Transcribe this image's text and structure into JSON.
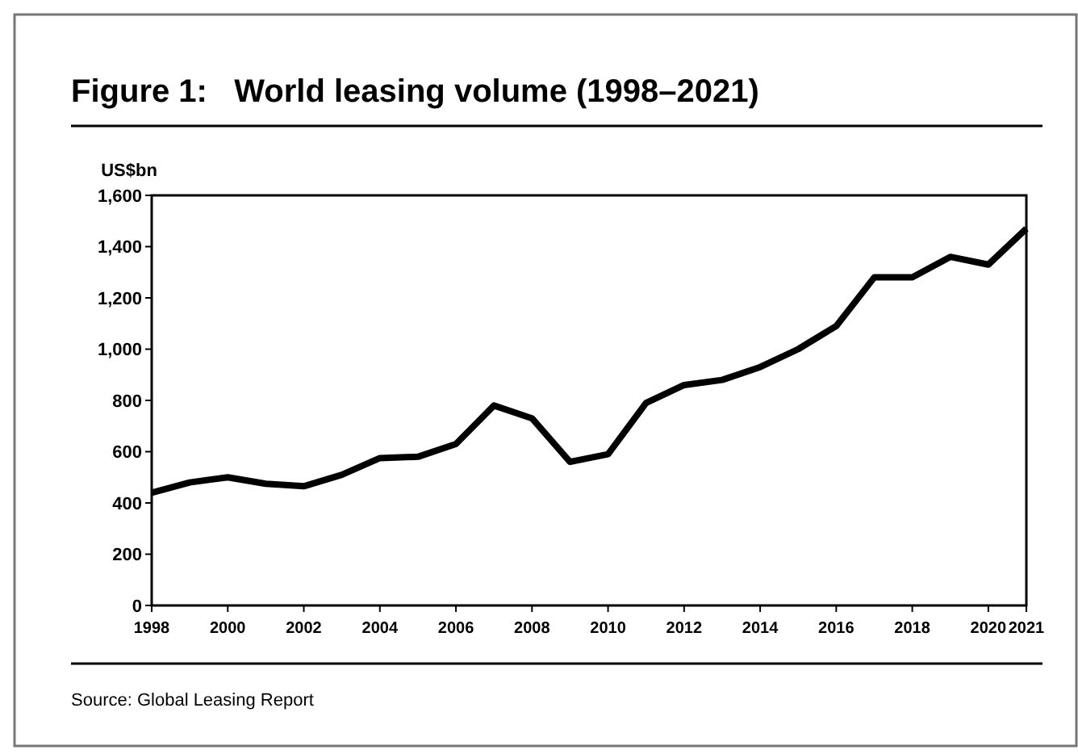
{
  "chart_data": {
    "type": "line",
    "title": "Figure 1:   World leasing volume (1998–2021)",
    "ylabel": "US$bn",
    "x": [
      1998,
      1999,
      2000,
      2001,
      2002,
      2003,
      2004,
      2005,
      2006,
      2007,
      2008,
      2009,
      2010,
      2011,
      2012,
      2013,
      2014,
      2015,
      2016,
      2017,
      2018,
      2019,
      2020,
      2021
    ],
    "series": [
      {
        "color": "#000000",
        "values": [
          440,
          480,
          500,
          475,
          465,
          510,
          575,
          580,
          630,
          780,
          730,
          560,
          590,
          790,
          860,
          880,
          930,
          1000,
          1090,
          1280,
          1280,
          1360,
          1330,
          1470
        ]
      }
    ],
    "xlim": [
      1998,
      2021
    ],
    "xticks": [
      1998,
      2000,
      2002,
      2004,
      2006,
      2008,
      2010,
      2012,
      2014,
      2016,
      2018,
      2020,
      2021
    ],
    "ylim": [
      0,
      1600
    ],
    "yticks": [
      0,
      200,
      400,
      600,
      800,
      {
        "value": 1000,
        "label": "1,000"
      },
      {
        "value": 1200,
        "label": "1,200"
      },
      {
        "value": 1400,
        "label": "1,400"
      },
      {
        "value": 1600,
        "label": "1,600"
      }
    ],
    "grid": false,
    "marker": "none",
    "line_style": "solid",
    "annotations": [
      "Source: Global Leasing Report"
    ]
  }
}
